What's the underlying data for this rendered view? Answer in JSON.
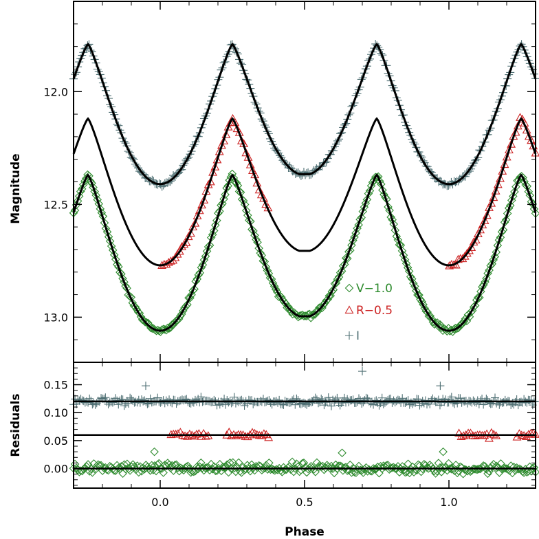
{
  "chart_data": [
    {
      "type": "scatter",
      "panel": "top",
      "xlabel": "",
      "ylabel": "Magnitude",
      "xlim": [
        -0.3,
        1.3
      ],
      "ylim": [
        13.2,
        11.6
      ],
      "y_inverted": true,
      "y_ticks": [
        12.0,
        12.5,
        13.0
      ],
      "y_tick_labels": [
        "12.0",
        "12.5",
        "13.0"
      ],
      "legend_position": "center-right",
      "series": [
        {
          "name": "V−1.0",
          "marker": "diamond",
          "color": "#2e8b2e",
          "phase_range": [
            -0.3,
            1.3
          ],
          "max_mag": 12.37,
          "primary_min_mag": 13.06,
          "secondary_min_mag": 13.0
        },
        {
          "name": "R−0.5",
          "marker": "triangle",
          "color": "#cc2222",
          "phase_range": [
            [
              0.0,
              0.38
            ],
            [
              1.0,
              1.3
            ]
          ],
          "max_mag": 12.12,
          "primary_min_mag": 12.77,
          "secondary_min_mag": 12.71
        },
        {
          "name": "I",
          "marker": "plus",
          "color": "#4d6e72",
          "phase_range": [
            -0.3,
            1.3
          ],
          "max_mag": 11.79,
          "primary_min_mag": 12.41,
          "secondary_min_mag": 12.37
        }
      ],
      "model_curves": [
        {
          "max_mag": 11.79,
          "primary_min_mag": 12.41,
          "secondary_min_mag": 12.37
        },
        {
          "max_mag": 12.12,
          "primary_min_mag": 12.77,
          "secondary_min_mag": 12.71
        },
        {
          "max_mag": 12.37,
          "primary_min_mag": 13.06,
          "secondary_min_mag": 13.0
        }
      ]
    },
    {
      "type": "scatter",
      "panel": "bottom",
      "xlabel": "Phase",
      "ylabel": "Residuals",
      "xlim": [
        -0.3,
        1.3
      ],
      "ylim": [
        -0.035,
        0.19
      ],
      "x_ticks": [
        0.0,
        0.5,
        1.0
      ],
      "x_tick_labels": [
        "0.0",
        "0.5",
        "1.0"
      ],
      "y_ticks": [
        0.0,
        0.05,
        0.1,
        0.15
      ],
      "y_tick_labels": [
        "0.00",
        "0.05",
        "0.10",
        "0.15"
      ],
      "reference_lines": [
        0.0,
        0.06,
        0.12
      ],
      "series": [
        {
          "name": "V−1.0",
          "offset": 0.0,
          "scatter": 0.012
        },
        {
          "name": "R−0.5",
          "offset": 0.06,
          "scatter": 0.006
        },
        {
          "name": "I",
          "offset": 0.12,
          "scatter": 0.008
        }
      ],
      "outliers": [
        {
          "series": "I",
          "x": -0.05,
          "y": 0.148
        },
        {
          "series": "I",
          "x": 0.7,
          "y": 0.174
        },
        {
          "series": "I",
          "x": 0.97,
          "y": 0.148
        },
        {
          "series": "V−1.0",
          "x": -0.02,
          "y": 0.03
        },
        {
          "series": "V−1.0",
          "x": 0.98,
          "y": 0.03
        },
        {
          "series": "V−1.0",
          "x": 0.63,
          "y": 0.028
        }
      ]
    }
  ],
  "colors": {
    "V": "#2e8b2e",
    "R": "#cc2222",
    "I": "#4d6e72",
    "model": "#000000"
  }
}
